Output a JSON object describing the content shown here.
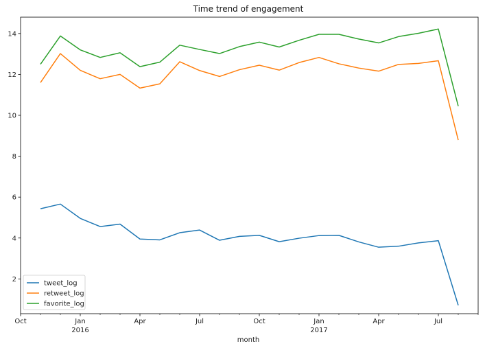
{
  "chart_data": {
    "type": "line",
    "title": "Time trend of engagement",
    "xlabel": "month",
    "ylabel": "",
    "x": [
      "2015-11",
      "2015-12",
      "2016-01",
      "2016-02",
      "2016-03",
      "2016-04",
      "2016-05",
      "2016-06",
      "2016-07",
      "2016-08",
      "2016-09",
      "2016-10",
      "2016-11",
      "2016-12",
      "2017-01",
      "2017-02",
      "2017-03",
      "2017-04",
      "2017-05",
      "2017-06",
      "2017-07",
      "2017-08"
    ],
    "xlim": [
      "2015-10",
      "2017-09"
    ],
    "ylim": [
      0.3,
      14.8
    ],
    "yticks": [
      2,
      4,
      6,
      8,
      10,
      12,
      14
    ],
    "xticks": [
      {
        "month": "2015-10",
        "label": "Oct",
        "year": ""
      },
      {
        "month": "2016-01",
        "label": "Jan",
        "year": "2016"
      },
      {
        "month": "2016-04",
        "label": "Apr",
        "year": ""
      },
      {
        "month": "2016-07",
        "label": "Jul",
        "year": ""
      },
      {
        "month": "2016-10",
        "label": "Oct",
        "year": ""
      },
      {
        "month": "2017-01",
        "label": "Jan",
        "year": "2017"
      },
      {
        "month": "2017-04",
        "label": "Apr",
        "year": ""
      },
      {
        "month": "2017-07",
        "label": "Jul",
        "year": ""
      }
    ],
    "grid": false,
    "legend_position": "bottom-left",
    "series": [
      {
        "name": "tweet_log",
        "color": "#1f77b4",
        "values": [
          5.43,
          5.66,
          4.96,
          4.56,
          4.68,
          3.95,
          3.91,
          4.26,
          4.39,
          3.89,
          4.08,
          4.13,
          3.82,
          3.99,
          4.12,
          4.13,
          3.81,
          3.55,
          3.6,
          3.76,
          3.87,
          0.71
        ]
      },
      {
        "name": "retweet_log",
        "color": "#ff7f0e",
        "values": [
          11.6,
          13.02,
          12.2,
          11.79,
          12.0,
          11.33,
          11.54,
          12.62,
          12.19,
          11.9,
          12.23,
          12.45,
          12.21,
          12.58,
          12.83,
          12.52,
          12.31,
          12.16,
          12.49,
          12.54,
          12.67,
          8.79
        ]
      },
      {
        "name": "favorite_log",
        "color": "#2ca02c",
        "values": [
          12.5,
          13.88,
          13.2,
          12.83,
          13.06,
          12.38,
          12.6,
          13.43,
          13.22,
          13.02,
          13.36,
          13.58,
          13.34,
          13.67,
          13.96,
          13.96,
          13.73,
          13.54,
          13.85,
          14.01,
          14.22,
          10.45
        ]
      }
    ]
  }
}
